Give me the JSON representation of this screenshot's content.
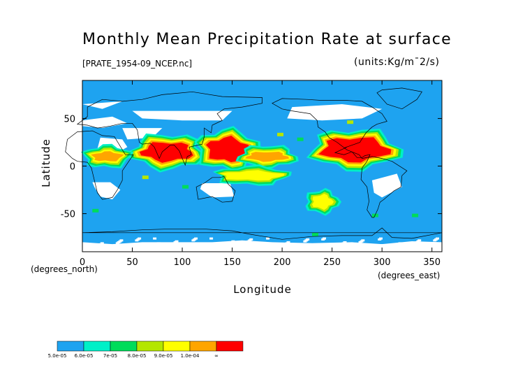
{
  "chart_data": {
    "type": "heatmap",
    "title": "Monthly Mean Precipitation Rate at surface",
    "subtitle": "[PRATE_1954-09_NCEP.nc]",
    "units": "(units:Kg/m¯2/s)",
    "xlabel": "Longitude",
    "ylabel": "Latitude",
    "x_unit_label": "(degrees_east)",
    "y_unit_label": "(degrees_north)",
    "xlim": [
      0,
      360
    ],
    "ylim": [
      -90,
      90
    ],
    "x_ticks": [
      0,
      50,
      100,
      150,
      200,
      250,
      300,
      350
    ],
    "y_ticks": [
      -50,
      0,
      50
    ],
    "colorbar": {
      "labels": [
        "5.0e-05",
        "6.0e-05",
        "7e-05",
        "8.0e-05",
        "9.0e-05",
        "1.0e-04",
        "∞"
      ],
      "colors": [
        "#1ea3f0",
        "#00f0c8",
        "#00dc5a",
        "#b4e600",
        "#ffff00",
        "#ffa500",
        "#ff0000"
      ]
    },
    "colors": {
      "ocean": "#1ea3f0",
      "no_data": "#ffffff",
      "coast": "#000000"
    },
    "regions": [
      {
        "lon": [
          60,
          110
        ],
        "lat": [
          5,
          25
        ],
        "level": 7
      },
      {
        "lon": [
          125,
          165
        ],
        "lat": [
          5,
          30
        ],
        "level": 7
      },
      {
        "lon": [
          165,
          205
        ],
        "lat": [
          5,
          15
        ],
        "level": 6
      },
      {
        "lon": [
          240,
          305
        ],
        "lat": [
          5,
          30
        ],
        "level": 7
      },
      {
        "lon": [
          10,
          40
        ],
        "lat": [
          5,
          15
        ],
        "level": 6
      },
      {
        "lon": [
          140,
          200
        ],
        "lat": [
          -15,
          -5
        ],
        "level": 5
      },
      {
        "lon": [
          230,
          250
        ],
        "lat": [
          -45,
          -30
        ],
        "level": 5
      }
    ]
  }
}
